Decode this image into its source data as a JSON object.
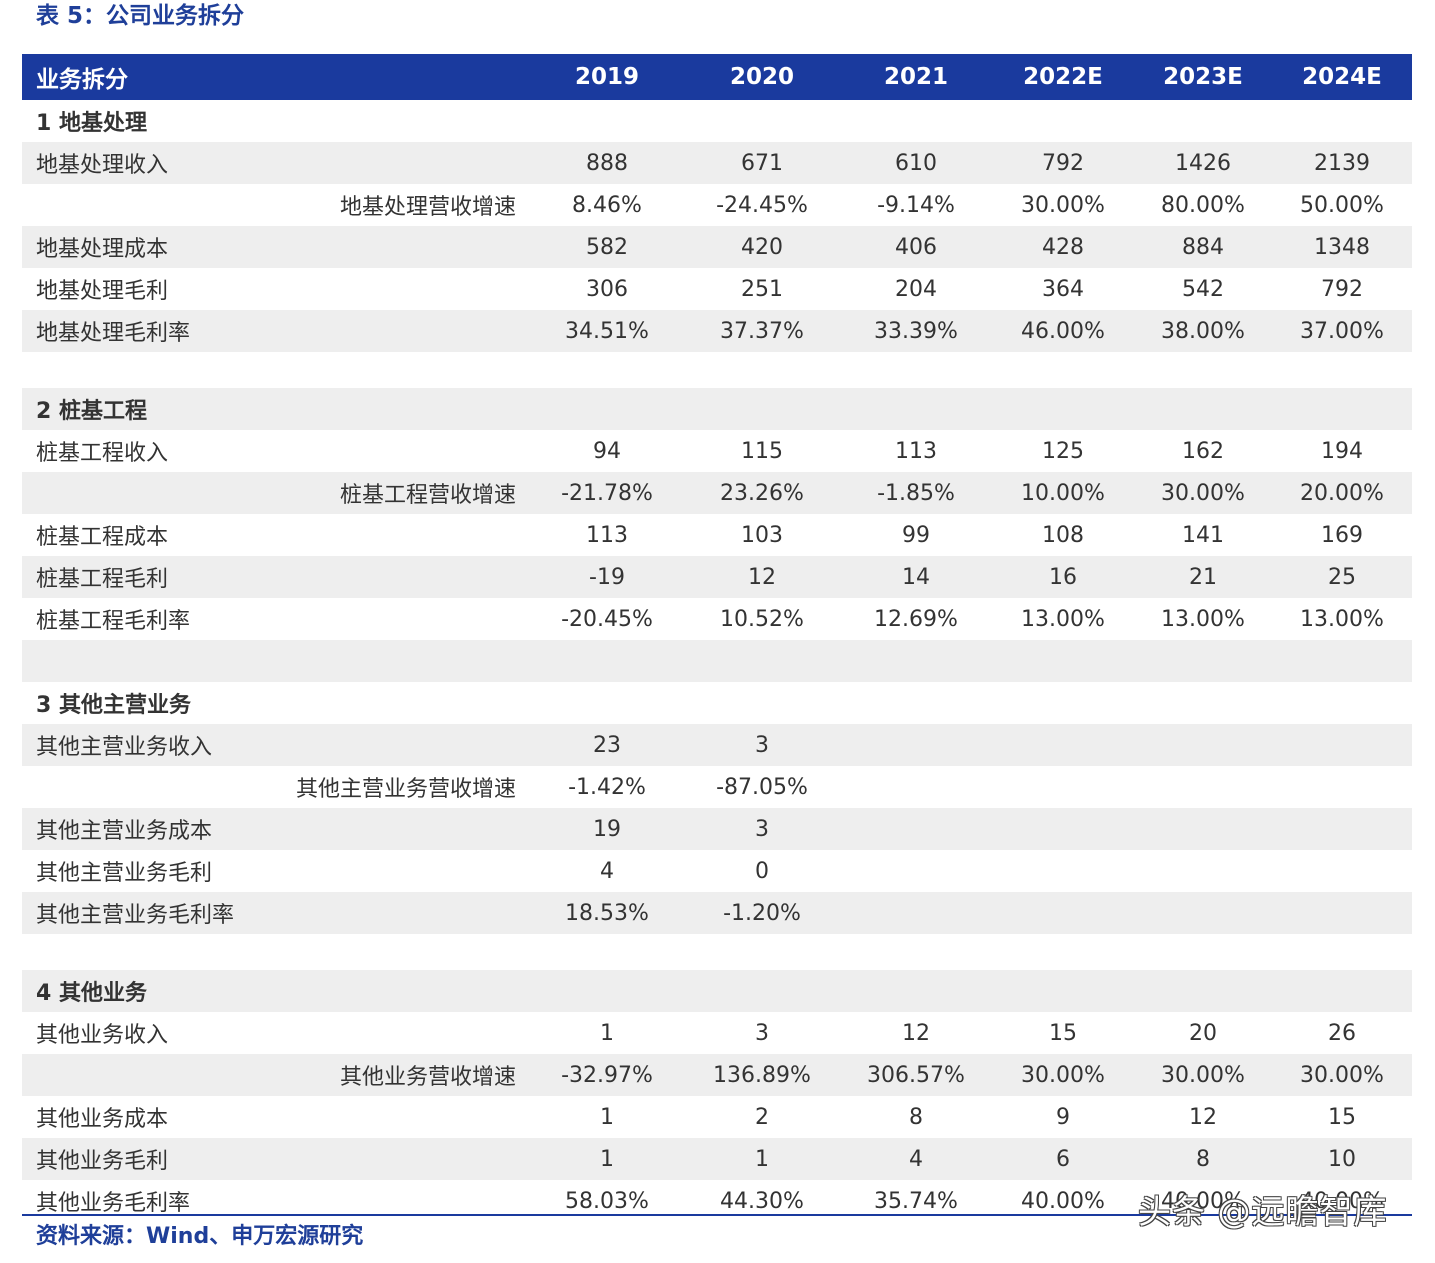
{
  "title": "表 5：公司业务拆分",
  "header": {
    "label": "业务拆分",
    "years": [
      "2019",
      "2020",
      "2021",
      "2022E",
      "2023E",
      "2024E"
    ]
  },
  "rows": [
    {
      "type": "section",
      "label": "1 地基处理",
      "values": []
    },
    {
      "type": "item",
      "label": "地基处理收入",
      "values": [
        "888",
        "671",
        "610",
        "792",
        "1426",
        "2139"
      ]
    },
    {
      "type": "growth",
      "label": "地基处理营收增速",
      "values": [
        "8.46%",
        "-24.45%",
        "-9.14%",
        "30.00%",
        "80.00%",
        "50.00%"
      ]
    },
    {
      "type": "item",
      "label": "地基处理成本",
      "values": [
        "582",
        "420",
        "406",
        "428",
        "884",
        "1348"
      ]
    },
    {
      "type": "item",
      "label": "地基处理毛利",
      "values": [
        "306",
        "251",
        "204",
        "364",
        "542",
        "792"
      ]
    },
    {
      "type": "item",
      "label": "地基处理毛利率",
      "values": [
        "34.51%",
        "37.37%",
        "33.39%",
        "46.00%",
        "38.00%",
        "37.00%"
      ]
    },
    {
      "type": "spacer",
      "label": "",
      "values": []
    },
    {
      "type": "section",
      "label": "2 桩基工程",
      "values": []
    },
    {
      "type": "item",
      "label": "桩基工程收入",
      "values": [
        "94",
        "115",
        "113",
        "125",
        "162",
        "194"
      ]
    },
    {
      "type": "growth",
      "label": "桩基工程营收增速",
      "values": [
        "-21.78%",
        "23.26%",
        "-1.85%",
        "10.00%",
        "30.00%",
        "20.00%"
      ]
    },
    {
      "type": "item",
      "label": "桩基工程成本",
      "values": [
        "113",
        "103",
        "99",
        "108",
        "141",
        "169"
      ]
    },
    {
      "type": "item",
      "label": "桩基工程毛利",
      "values": [
        "-19",
        "12",
        "14",
        "16",
        "21",
        "25"
      ]
    },
    {
      "type": "item",
      "label": "桩基工程毛利率",
      "values": [
        "-20.45%",
        "10.52%",
        "12.69%",
        "13.00%",
        "13.00%",
        "13.00%"
      ]
    },
    {
      "type": "spacer",
      "label": "",
      "values": []
    },
    {
      "type": "section",
      "label": "3 其他主营业务",
      "values": []
    },
    {
      "type": "item",
      "label": "其他主营业务收入",
      "values": [
        "23",
        "3",
        "",
        "",
        "",
        ""
      ]
    },
    {
      "type": "growth",
      "label": "其他主营业务营收增速",
      "values": [
        "-1.42%",
        "-87.05%",
        "",
        "",
        "",
        ""
      ]
    },
    {
      "type": "item",
      "label": "其他主营业务成本",
      "values": [
        "19",
        "3",
        "",
        "",
        "",
        ""
      ]
    },
    {
      "type": "item",
      "label": "其他主营业务毛利",
      "values": [
        "4",
        "0",
        "",
        "",
        "",
        ""
      ]
    },
    {
      "type": "item",
      "label": "其他主营业务毛利率",
      "values": [
        "18.53%",
        "-1.20%",
        "",
        "",
        "",
        ""
      ]
    },
    {
      "type": "spacer",
      "label": "",
      "values": []
    },
    {
      "type": "section",
      "label": "4 其他业务",
      "values": []
    },
    {
      "type": "item",
      "label": "其他业务收入",
      "values": [
        "1",
        "3",
        "12",
        "15",
        "20",
        "26"
      ]
    },
    {
      "type": "growth",
      "label": "其他业务营收增速",
      "values": [
        "-32.97%",
        "136.89%",
        "306.57%",
        "30.00%",
        "30.00%",
        "30.00%"
      ]
    },
    {
      "type": "item",
      "label": "其他业务成本",
      "values": [
        "1",
        "2",
        "8",
        "9",
        "12",
        "15"
      ]
    },
    {
      "type": "item",
      "label": "其他业务毛利",
      "values": [
        "1",
        "1",
        "4",
        "6",
        "8",
        "10"
      ]
    },
    {
      "type": "item",
      "label": "其他业务毛利率",
      "values": [
        "58.03%",
        "44.30%",
        "35.74%",
        "40.00%",
        "40.00%",
        "40.00%"
      ]
    }
  ],
  "source": "资料来源：Wind、申万宏源研究",
  "watermark": "头条 @远瞻智库"
}
